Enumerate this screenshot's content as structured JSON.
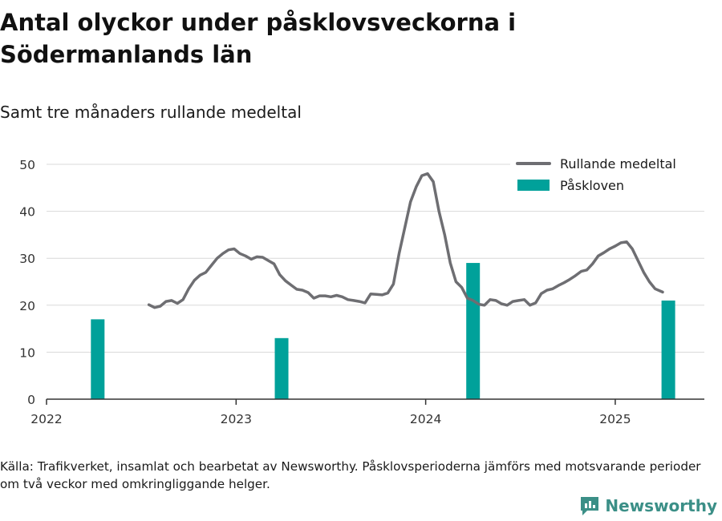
{
  "title": "Antal olyckor under påsklovsveckorna i Södermanlands län",
  "subtitle": "Samt tre månaders rullande medeltal",
  "source": "Källa: Trafikverket, insamlat och bearbetat av Newsworthy. Påsklovsperioderna jämförs med motsvarande perioder om två veckor med omkringliggande helger.",
  "brand": {
    "name": "Newsworthy",
    "icon": "newsworthy-logo-icon"
  },
  "colors": {
    "line": "#6e6e72",
    "bar": "#00a19a",
    "grid": "#d9d9d9",
    "axis": "#333333"
  },
  "chart_data": {
    "type": "bar+line",
    "ylim": [
      0,
      50
    ],
    "yticks": [
      0,
      10,
      20,
      30,
      40,
      50
    ],
    "xlim": [
      2022.0,
      2025.47
    ],
    "xticks": [
      {
        "value": 2022,
        "label": "2022"
      },
      {
        "value": 2023,
        "label": "2023"
      },
      {
        "value": 2024,
        "label": "2024"
      },
      {
        "value": 2025,
        "label": "2025"
      }
    ],
    "grid": true,
    "legend": "top-right",
    "series": [
      {
        "name": "Rullande medeltal",
        "kind": "line",
        "points": [
          [
            2022.54,
            20.1
          ],
          [
            2022.57,
            19.5
          ],
          [
            2022.6,
            19.8
          ],
          [
            2022.63,
            20.8
          ],
          [
            2022.66,
            21.0
          ],
          [
            2022.69,
            20.4
          ],
          [
            2022.72,
            21.2
          ],
          [
            2022.75,
            23.5
          ],
          [
            2022.78,
            25.3
          ],
          [
            2022.81,
            26.4
          ],
          [
            2022.84,
            27.0
          ],
          [
            2022.87,
            28.5
          ],
          [
            2022.9,
            30.0
          ],
          [
            2022.93,
            31.0
          ],
          [
            2022.96,
            31.8
          ],
          [
            2022.99,
            32.0
          ],
          [
            2023.02,
            31.0
          ],
          [
            2023.05,
            30.5
          ],
          [
            2023.08,
            29.8
          ],
          [
            2023.11,
            30.3
          ],
          [
            2023.14,
            30.2
          ],
          [
            2023.17,
            29.5
          ],
          [
            2023.2,
            28.8
          ],
          [
            2023.23,
            26.5
          ],
          [
            2023.26,
            25.2
          ],
          [
            2023.29,
            24.3
          ],
          [
            2023.32,
            23.4
          ],
          [
            2023.35,
            23.2
          ],
          [
            2023.38,
            22.7
          ],
          [
            2023.41,
            21.5
          ],
          [
            2023.44,
            22.0
          ],
          [
            2023.47,
            22.0
          ],
          [
            2023.5,
            21.8
          ],
          [
            2023.53,
            22.1
          ],
          [
            2023.56,
            21.8
          ],
          [
            2023.59,
            21.2
          ],
          [
            2023.62,
            21.0
          ],
          [
            2023.65,
            20.8
          ],
          [
            2023.68,
            20.5
          ],
          [
            2023.71,
            22.4
          ],
          [
            2023.74,
            22.3
          ],
          [
            2023.77,
            22.2
          ],
          [
            2023.8,
            22.6
          ],
          [
            2023.83,
            24.5
          ],
          [
            2023.86,
            31.0
          ],
          [
            2023.89,
            36.5
          ],
          [
            2023.92,
            42.0
          ],
          [
            2023.95,
            45.2
          ],
          [
            2023.98,
            47.6
          ],
          [
            2024.01,
            48.0
          ],
          [
            2024.04,
            46.3
          ],
          [
            2024.07,
            40.0
          ],
          [
            2024.1,
            35.0
          ],
          [
            2024.13,
            29.0
          ],
          [
            2024.16,
            25.0
          ],
          [
            2024.19,
            23.8
          ],
          [
            2024.22,
            21.5
          ],
          [
            2024.25,
            21.0
          ],
          [
            2024.28,
            20.2
          ],
          [
            2024.31,
            20.0
          ],
          [
            2024.34,
            21.2
          ],
          [
            2024.37,
            21.0
          ],
          [
            2024.4,
            20.3
          ],
          [
            2024.43,
            20.0
          ],
          [
            2024.46,
            20.8
          ],
          [
            2024.49,
            21.0
          ],
          [
            2024.52,
            21.2
          ],
          [
            2024.55,
            20.0
          ],
          [
            2024.58,
            20.5
          ],
          [
            2024.61,
            22.5
          ],
          [
            2024.64,
            23.2
          ],
          [
            2024.67,
            23.5
          ],
          [
            2024.7,
            24.2
          ],
          [
            2024.73,
            24.8
          ],
          [
            2024.76,
            25.5
          ],
          [
            2024.79,
            26.3
          ],
          [
            2024.82,
            27.2
          ],
          [
            2024.85,
            27.5
          ],
          [
            2024.88,
            28.8
          ],
          [
            2024.91,
            30.5
          ],
          [
            2024.94,
            31.2
          ],
          [
            2024.97,
            32.0
          ],
          [
            2025.0,
            32.6
          ],
          [
            2025.03,
            33.3
          ],
          [
            2025.06,
            33.5
          ],
          [
            2025.09,
            32.0
          ],
          [
            2025.12,
            29.5
          ],
          [
            2025.15,
            27.0
          ],
          [
            2025.18,
            25.0
          ],
          [
            2025.21,
            23.5
          ],
          [
            2025.25,
            22.8
          ]
        ]
      },
      {
        "name": "Påskloven",
        "kind": "bar",
        "points": [
          [
            2022.27,
            17
          ],
          [
            2023.24,
            13
          ],
          [
            2024.25,
            29
          ],
          [
            2025.28,
            21
          ]
        ]
      }
    ]
  }
}
